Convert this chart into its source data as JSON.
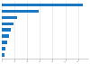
{
  "values": [
    636,
    290,
    122,
    89,
    72,
    55,
    42,
    28,
    22
  ],
  "bar_color": "#1a78c2",
  "background_color": "#ffffff",
  "grid_color": "#dddddd",
  "figsize": [
    1.0,
    0.71
  ],
  "dpi": 100,
  "xlim": [
    0,
    680
  ]
}
